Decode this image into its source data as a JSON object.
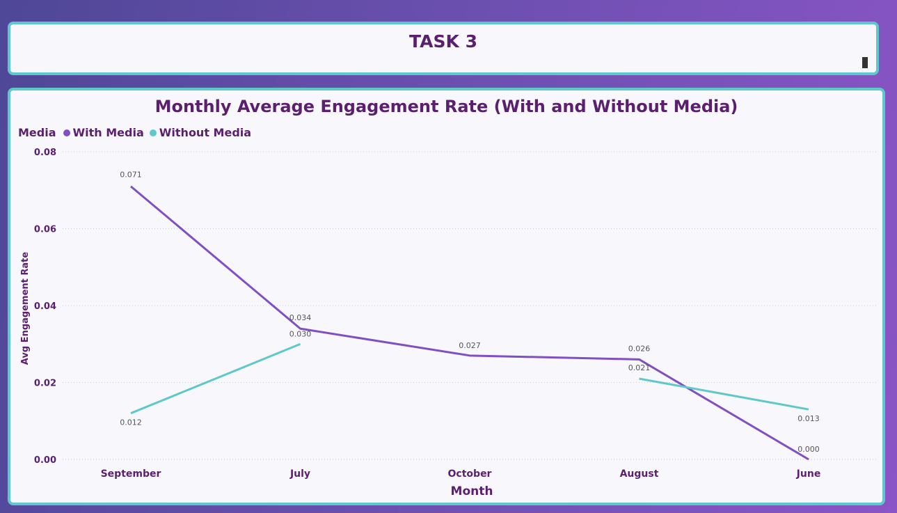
{
  "header": {
    "title": "TASK 3"
  },
  "colors": {
    "with_media": "#7f4fc3",
    "without_media": "#5ec8cc",
    "text": "#5a1f6e",
    "border": "#5ec8cc"
  },
  "chart_data": {
    "type": "line",
    "title": "Monthly Average Engagement Rate (With and Without Media)",
    "xlabel": "Month",
    "ylabel": "Avg Engagement Rate",
    "legend_title": "Media",
    "legend_position": "top-left",
    "grid": true,
    "ylim": [
      0,
      0.08
    ],
    "yticks": [
      "0.00",
      "0.02",
      "0.04",
      "0.06",
      "0.08"
    ],
    "categories": [
      "September",
      "July",
      "October",
      "August",
      "June"
    ],
    "series": [
      {
        "name": "With Media",
        "values": [
          0.071,
          0.034,
          0.027,
          0.026,
          0.0
        ],
        "labels": [
          "0.071",
          "0.034",
          "0.027",
          "0.026",
          "0.000"
        ]
      },
      {
        "name": "Without Media",
        "values": [
          0.012,
          0.03,
          null,
          0.021,
          0.013
        ],
        "labels": [
          "0.012",
          "0.030",
          null,
          "0.021",
          "0.013"
        ]
      }
    ]
  }
}
